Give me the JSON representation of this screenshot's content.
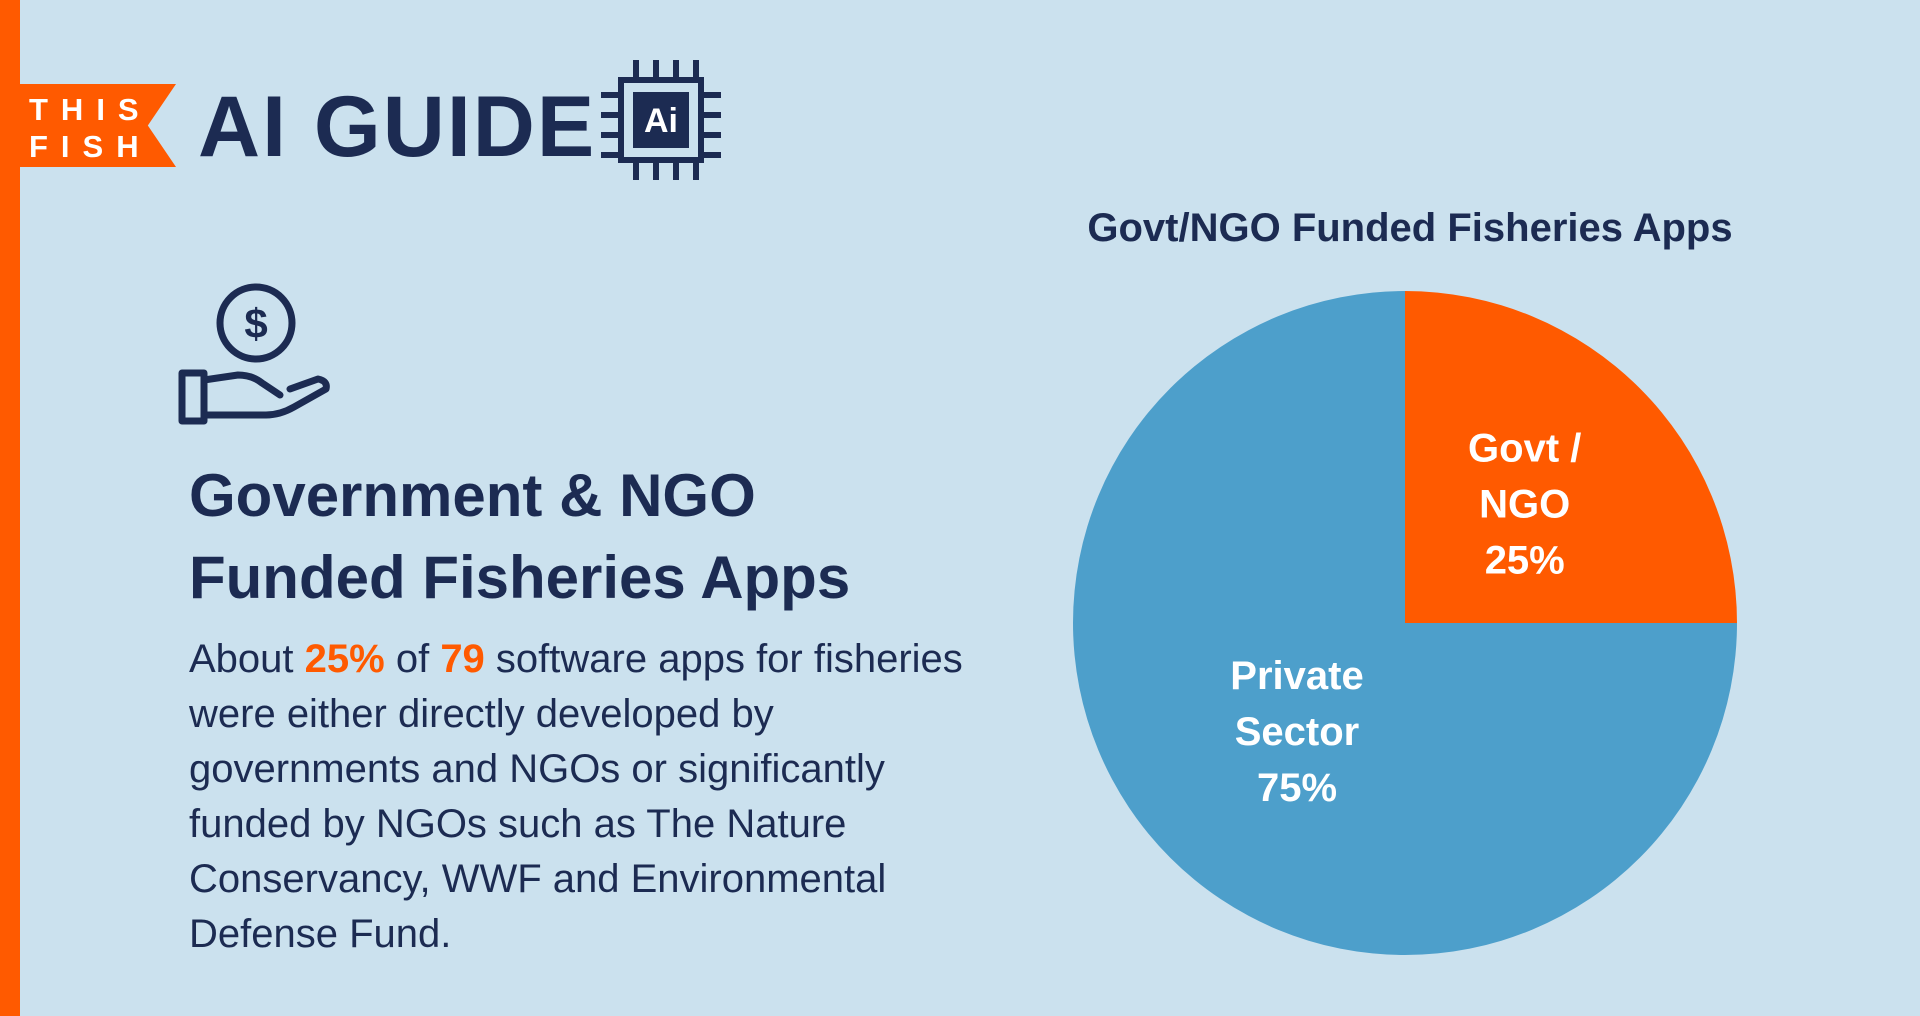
{
  "brand": {
    "tag_line1": "THIS",
    "tag_line2": "FISH",
    "title": "AI GUIDE",
    "chip_text": "Ai",
    "colors": {
      "accent": "#ff5a00",
      "navy": "#1c2b52",
      "background": "#cbe1ee"
    }
  },
  "icons": [
    "cpu-chip-icon",
    "money-hand-icon"
  ],
  "content": {
    "headline_line1": "Government & NGO",
    "headline_line2": "Funded Fisheries Apps",
    "body_before_pct": "About ",
    "body_pct": "25%",
    "body_mid": " of ",
    "body_count": "79",
    "body_after": " software apps for fisheries were either directly developed by governments and NGOs or significantly funded by NGOs such as The Nature Conservancy, WWF and Environmental Defense Fund."
  },
  "chart_data": {
    "type": "pie",
    "title": "Govt/NGO Funded Fisheries Apps",
    "slices": [
      {
        "label_lines": [
          "Govt /",
          "NGO"
        ],
        "value": 25,
        "value_label": "25%",
        "color": "#ff5a00"
      },
      {
        "label_lines": [
          "Private",
          "Sector"
        ],
        "value": 75,
        "value_label": "75%",
        "color": "#4d9fcb"
      }
    ]
  }
}
